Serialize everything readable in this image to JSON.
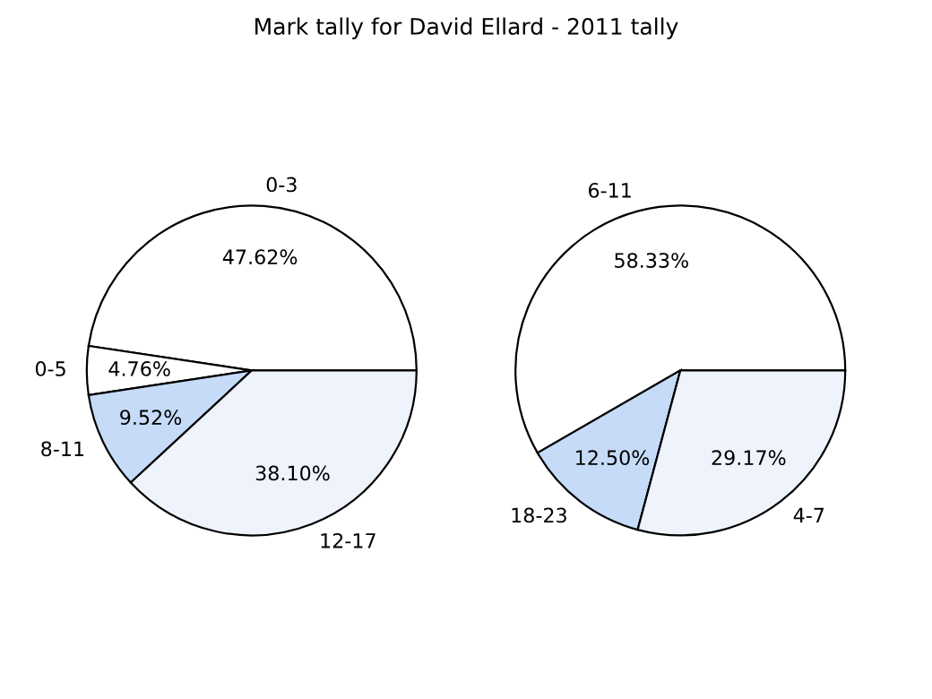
{
  "chart_data": [
    {
      "type": "pie",
      "title": "Mark tally for David Ellard - 2011 tally",
      "categories": [
        "0-3",
        "0-5",
        "8-11",
        "12-17"
      ],
      "values": [
        47.62,
        4.76,
        9.52,
        38.1
      ],
      "value_labels": [
        "47.62%",
        "4.76%",
        "9.52%",
        "38.10%"
      ],
      "colors": [
        "#ffffff",
        "#ffffff",
        "#c6dbf7",
        "#eef3fc"
      ]
    },
    {
      "type": "pie",
      "categories": [
        "6-11",
        "18-23",
        "4-7"
      ],
      "values": [
        58.33,
        12.5,
        29.17
      ],
      "value_labels": [
        "58.33%",
        "12.50%",
        "29.17%"
      ],
      "colors": [
        "#ffffff",
        "#c6dbf7",
        "#eef3fc"
      ]
    }
  ]
}
